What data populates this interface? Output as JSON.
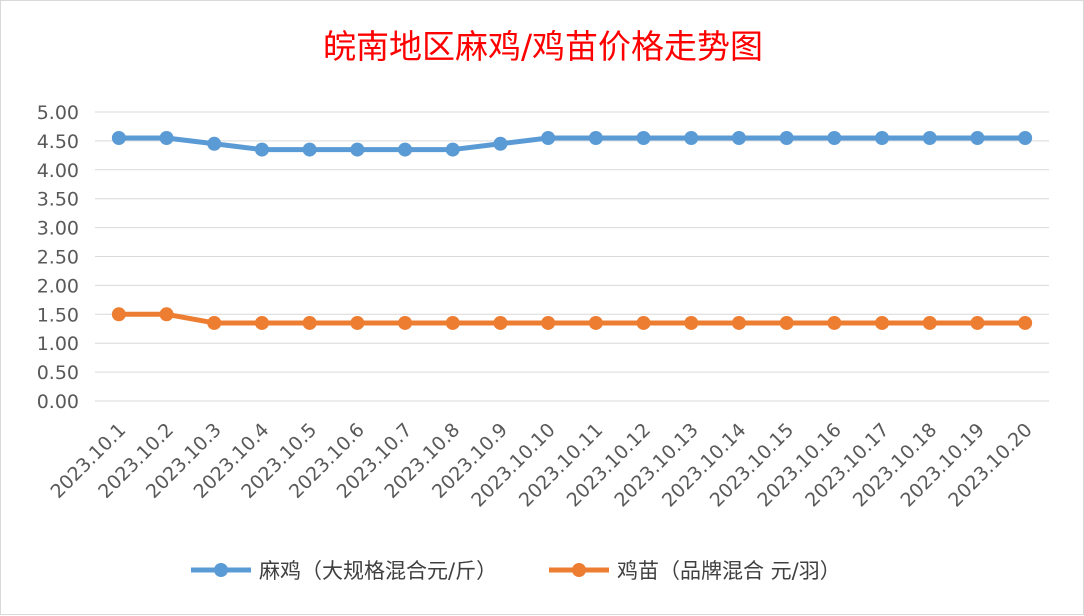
{
  "chart_data": {
    "type": "line",
    "title": "皖南地区麻鸡/鸡苗价格走势图",
    "title_color": "#ff0000",
    "categories": [
      "2023.10.1",
      "2023.10.2",
      "2023.10.3",
      "2023.10.4",
      "2023.10.5",
      "2023.10.6",
      "2023.10.7",
      "2023.10.8",
      "2023.10.9",
      "2023.10.10",
      "2023.10.11",
      "2023.10.12",
      "2023.10.13",
      "2023.10.14",
      "2023.10.15",
      "2023.10.16",
      "2023.10.17",
      "2023.10.18",
      "2023.10.19",
      "2023.10.20"
    ],
    "series": [
      {
        "name": "麻鸡（大规格混合元/斤）",
        "color": "#5b9bd5",
        "values": [
          4.55,
          4.55,
          4.45,
          4.35,
          4.35,
          4.35,
          4.35,
          4.35,
          4.45,
          4.55,
          4.55,
          4.55,
          4.55,
          4.55,
          4.55,
          4.55,
          4.55,
          4.55,
          4.55,
          4.55
        ]
      },
      {
        "name": "鸡苗（品牌混合 元/羽）",
        "color": "#ed7d31",
        "values": [
          1.5,
          1.5,
          1.35,
          1.35,
          1.35,
          1.35,
          1.35,
          1.35,
          1.35,
          1.35,
          1.35,
          1.35,
          1.35,
          1.35,
          1.35,
          1.35,
          1.35,
          1.35,
          1.35,
          1.35
        ]
      }
    ],
    "ylim": [
      0,
      5
    ],
    "ytick_step": 0.5,
    "ytick_decimals": 2,
    "grid": true,
    "grid_color": "#d9d9d9",
    "xlabel": "",
    "ylabel": "",
    "legend_position": "bottom"
  }
}
